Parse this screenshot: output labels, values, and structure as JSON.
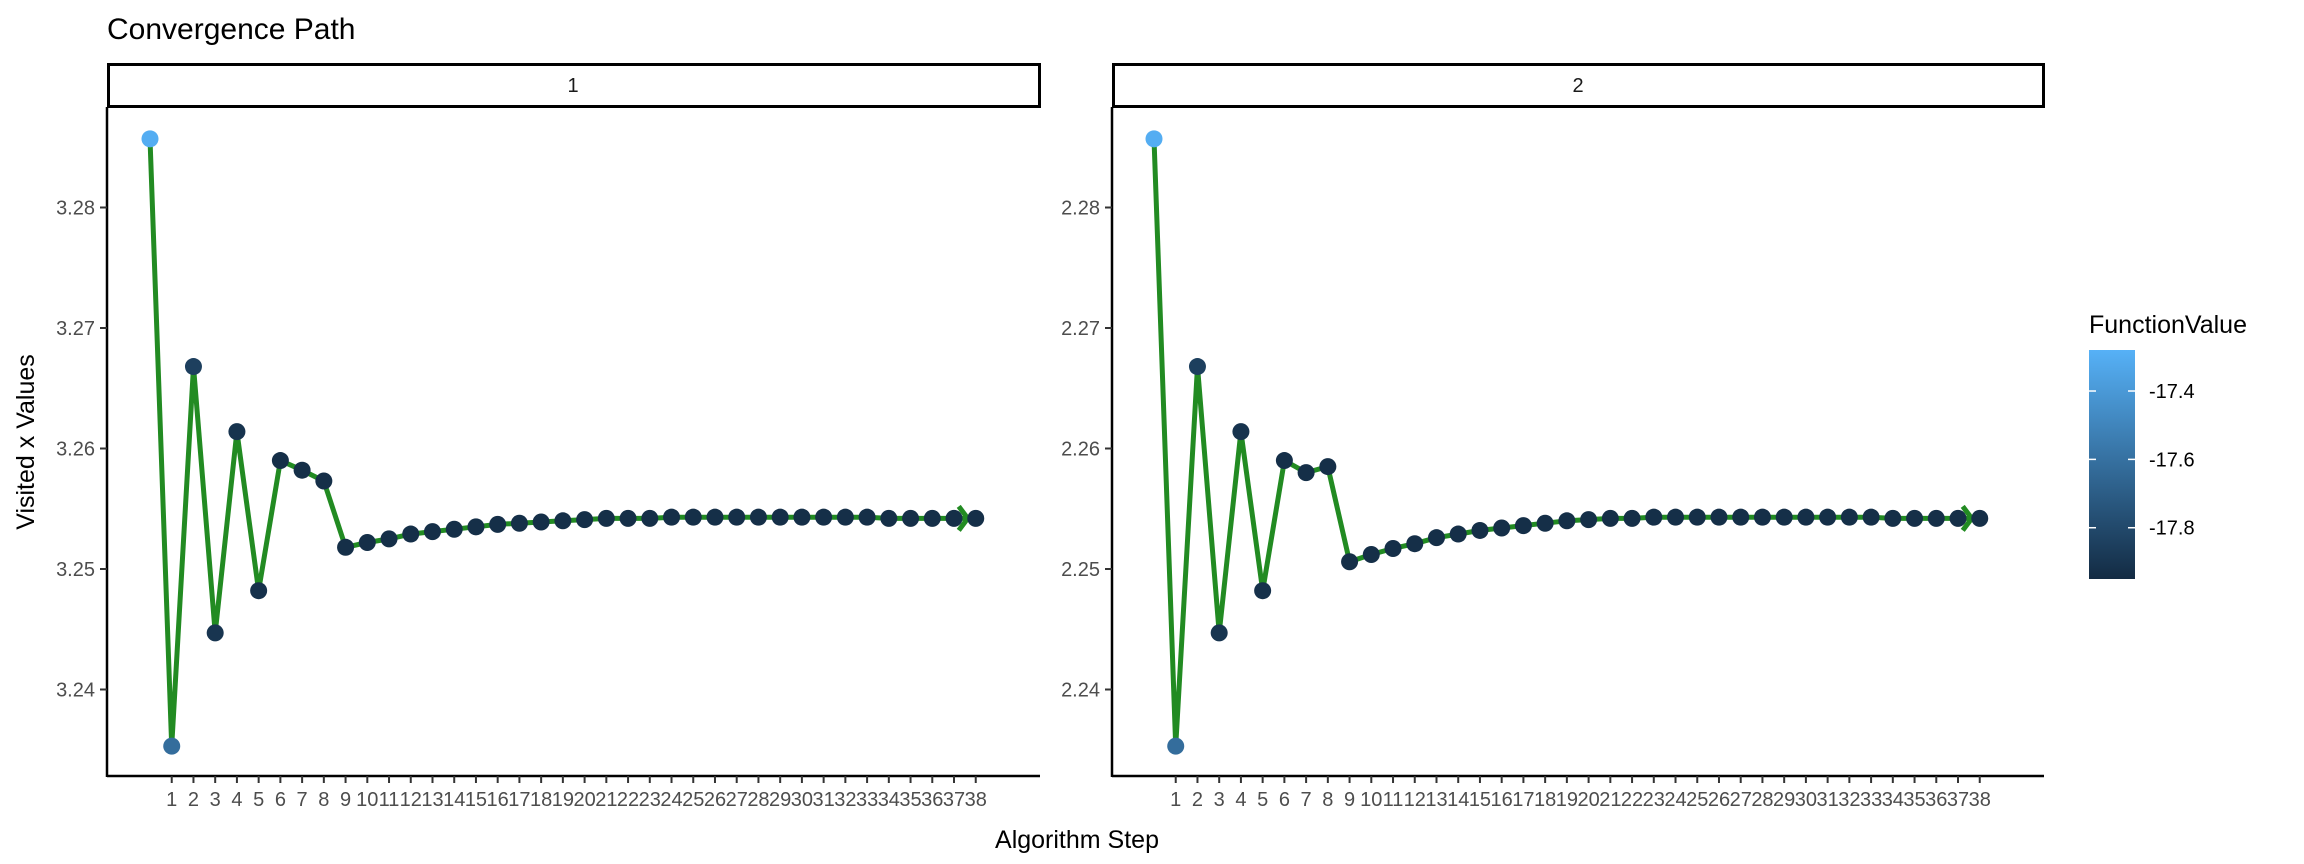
{
  "title": "Convergence Path",
  "xlabel": "Algorithm Step",
  "ylabel": "Visited x Values",
  "legend": {
    "title": "FunctionValue",
    "ticks": [
      "-17.4",
      "-17.6",
      "-17.8"
    ],
    "tick_values": [
      -17.4,
      -17.6,
      -17.8
    ],
    "range": [
      -17.95,
      -17.28
    ],
    "low_color": "#132B43",
    "high_color": "#56B1F7"
  },
  "colors": {
    "path_line": "#228B22",
    "axis": "#000000",
    "tick_text": "#4D4D4D"
  },
  "panels": [
    {
      "strip_label": "1",
      "y_ticks": [
        "3.24",
        "3.25",
        "3.26",
        "3.27",
        "3.28"
      ],
      "y_tick_values": [
        3.24,
        3.25,
        3.26,
        3.27,
        3.28
      ]
    },
    {
      "strip_label": "2",
      "y_ticks": [
        "2.24",
        "2.25",
        "2.26",
        "2.27",
        "2.28"
      ],
      "y_tick_values": [
        2.24,
        2.25,
        2.26,
        2.27,
        2.28
      ]
    }
  ],
  "x_ticks": [
    "1",
    "2",
    "3",
    "4",
    "5",
    "6",
    "7",
    "8",
    "9",
    "10",
    "11",
    "12",
    "13",
    "14",
    "15",
    "16",
    "17",
    "18",
    "19",
    "20",
    "21",
    "22",
    "23",
    "24",
    "25",
    "26",
    "27",
    "28",
    "29",
    "30",
    "31",
    "32",
    "33",
    "34",
    "35",
    "36",
    "37",
    "38"
  ],
  "chart_data": {
    "type": "line",
    "title": "Convergence Path",
    "xlabel": "Algorithm Step",
    "ylabel": "Visited x Values",
    "facets": [
      "1",
      "2"
    ],
    "legend": {
      "title": "FunctionValue",
      "position": "right",
      "type": "continuous-color"
    },
    "grid": false,
    "x": [
      0,
      1,
      2,
      3,
      4,
      5,
      6,
      7,
      8,
      9,
      10,
      11,
      12,
      13,
      14,
      15,
      16,
      17,
      18,
      19,
      20,
      21,
      22,
      23,
      24,
      25,
      26,
      27,
      28,
      29,
      30,
      31,
      32,
      33,
      34,
      35,
      36,
      37,
      38
    ],
    "series": [
      {
        "name": "1",
        "ylim": [
          3.2345,
          3.2885
        ],
        "values": [
          3.2857,
          3.2353,
          3.2668,
          3.2447,
          3.2614,
          3.2482,
          3.259,
          3.2582,
          3.2573,
          3.2518,
          3.2522,
          3.2525,
          3.2529,
          3.2531,
          3.2533,
          3.2535,
          3.2537,
          3.2538,
          3.2539,
          3.254,
          3.2541,
          3.2542,
          3.2542,
          3.2542,
          3.2543,
          3.2543,
          3.2543,
          3.2543,
          3.2543,
          3.2543,
          3.2543,
          3.2543,
          3.2543,
          3.2543,
          3.2542,
          3.2542,
          3.2542,
          3.2542,
          3.2542
        ],
        "function_values": [
          -17.3,
          -17.62,
          -17.85,
          -17.9,
          -17.91,
          -17.92,
          -17.93,
          -17.93,
          -17.93,
          -17.93,
          -17.93,
          -17.93,
          -17.93,
          -17.93,
          -17.93,
          -17.93,
          -17.93,
          -17.93,
          -17.93,
          -17.93,
          -17.93,
          -17.93,
          -17.93,
          -17.93,
          -17.93,
          -17.93,
          -17.93,
          -17.93,
          -17.93,
          -17.93,
          -17.93,
          -17.93,
          -17.93,
          -17.93,
          -17.93,
          -17.93,
          -17.93,
          -17.93,
          -17.93
        ]
      },
      {
        "name": "2",
        "ylim": [
          2.2345,
          2.2885
        ],
        "values": [
          2.2857,
          2.2353,
          2.2668,
          2.2447,
          2.2614,
          2.2482,
          2.259,
          2.258,
          2.2585,
          2.2506,
          2.2512,
          2.2517,
          2.2521,
          2.2526,
          2.2529,
          2.2532,
          2.2534,
          2.2536,
          2.2538,
          2.254,
          2.2541,
          2.2542,
          2.2542,
          2.2543,
          2.2543,
          2.2543,
          2.2543,
          2.2543,
          2.2543,
          2.2543,
          2.2543,
          2.2543,
          2.2543,
          2.2543,
          2.2542,
          2.2542,
          2.2542,
          2.2542,
          2.2542
        ],
        "function_values": [
          -17.3,
          -17.62,
          -17.85,
          -17.9,
          -17.91,
          -17.92,
          -17.93,
          -17.93,
          -17.93,
          -17.93,
          -17.93,
          -17.93,
          -17.93,
          -17.93,
          -17.93,
          -17.93,
          -17.93,
          -17.93,
          -17.93,
          -17.93,
          -17.93,
          -17.93,
          -17.93,
          -17.93,
          -17.93,
          -17.93,
          -17.93,
          -17.93,
          -17.93,
          -17.93,
          -17.93,
          -17.93,
          -17.93,
          -17.93,
          -17.93,
          -17.93,
          -17.93,
          -17.93,
          -17.93
        ]
      }
    ]
  }
}
